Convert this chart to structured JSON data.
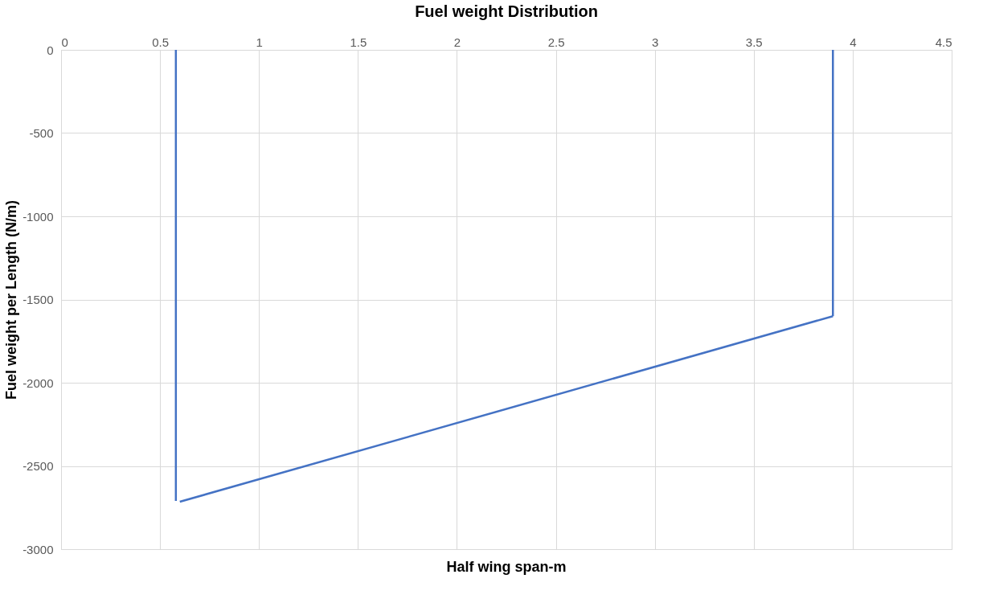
{
  "chart_data": {
    "type": "line",
    "title": "Fuel weight Distribution",
    "xlabel": "Half wing span-m",
    "ylabel": "Fuel weight per Length (N/m)",
    "series": [
      {
        "color": "#4472c4",
        "x": [
          0.58,
          0.58
        ],
        "values": [
          0,
          -2710
        ]
      },
      {
        "color": "#4472c4",
        "x": [
          0.6,
          3.9
        ],
        "values": [
          -2715,
          -1600
        ]
      },
      {
        "color": "#4472c4",
        "x": [
          3.9,
          3.9
        ],
        "values": [
          -1600,
          0
        ]
      }
    ],
    "xlim": [
      0,
      4.5
    ],
    "xticks": [
      0,
      0.5,
      1,
      1.5,
      2,
      2.5,
      3,
      3.5,
      4,
      4.5
    ],
    "ylim": [
      -3000,
      0
    ],
    "yticks": [
      -3000,
      -2500,
      -2000,
      -1500,
      -1000,
      -500,
      0
    ],
    "grid": true,
    "legend": false,
    "marker": "none",
    "line_style": "solid"
  }
}
